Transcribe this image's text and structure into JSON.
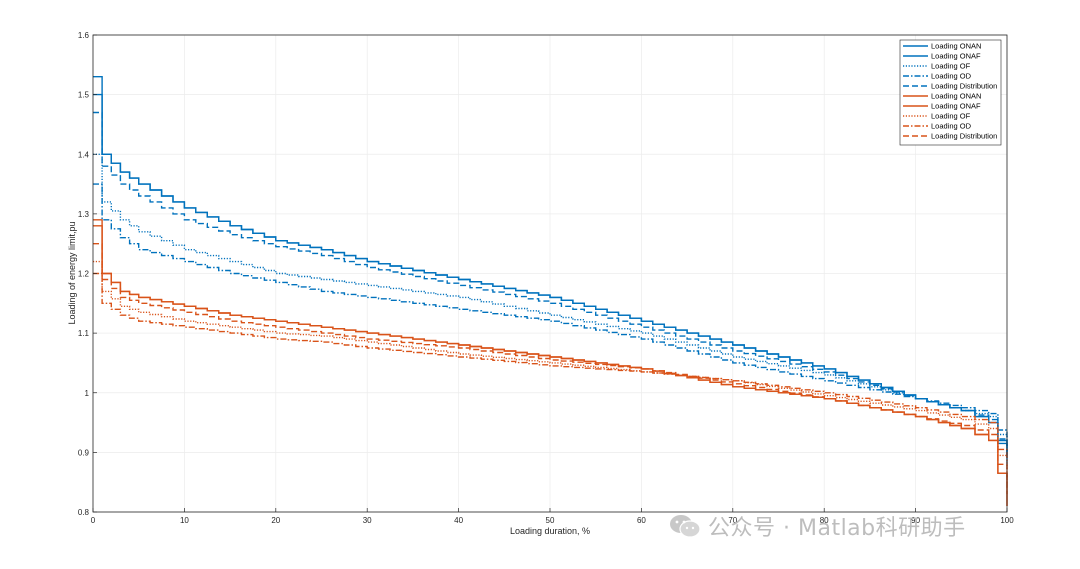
{
  "chart_data": {
    "type": "line",
    "title": "",
    "xlabel": "Loading duration, %",
    "ylabel": "Loading of energy limit,pu",
    "xlim": [
      0,
      100
    ],
    "ylim": [
      0.8,
      1.6
    ],
    "xticks": [
      "0",
      "10",
      "20",
      "30",
      "40",
      "50",
      "60",
      "70",
      "80",
      "90",
      "100"
    ],
    "yticks": [
      "0.8",
      "0.9",
      "1",
      "1.1",
      "1.2",
      "1.3",
      "1.4",
      "1.5",
      "1.6"
    ],
    "grid": true,
    "legend_position": "top-right",
    "series": [
      {
        "name": "Loading ONAN",
        "color": "#0072BD",
        "style": "solid",
        "x": [
          0,
          1,
          3,
          5,
          10,
          15,
          20,
          25,
          30,
          40,
          50,
          60,
          70,
          80,
          90,
          95,
          98,
          100
        ],
        "y": [
          1.53,
          1.4,
          1.37,
          1.35,
          1.31,
          1.28,
          1.255,
          1.24,
          1.22,
          1.19,
          1.16,
          1.12,
          1.08,
          1.04,
          0.99,
          0.97,
          0.95,
          0.89
        ]
      },
      {
        "name": "Loading ONAF",
        "color": "#0072BD",
        "style": "solid",
        "x": [
          0,
          1,
          3,
          5,
          10,
          15,
          20,
          25,
          30,
          40,
          50,
          60,
          70,
          80,
          90,
          95,
          98,
          100
        ],
        "y": [
          1.5,
          1.4,
          1.37,
          1.35,
          1.31,
          1.28,
          1.255,
          1.24,
          1.22,
          1.19,
          1.16,
          1.12,
          1.08,
          1.04,
          0.99,
          0.97,
          0.95,
          0.88
        ]
      },
      {
        "name": "Loading OF",
        "color": "#0072BD",
        "style": "dotted",
        "x": [
          0,
          1,
          3,
          5,
          10,
          15,
          20,
          25,
          30,
          40,
          50,
          60,
          70,
          80,
          90,
          95,
          98,
          100
        ],
        "y": [
          1.4,
          1.32,
          1.29,
          1.27,
          1.24,
          1.22,
          1.2,
          1.19,
          1.18,
          1.16,
          1.13,
          1.1,
          1.06,
          1.03,
          0.99,
          0.97,
          0.96,
          0.9
        ]
      },
      {
        "name": "Loading OD",
        "color": "#0072BD",
        "style": "dashdot",
        "x": [
          0,
          1,
          3,
          5,
          10,
          15,
          20,
          25,
          30,
          40,
          50,
          60,
          70,
          80,
          90,
          95,
          98,
          100
        ],
        "y": [
          1.35,
          1.29,
          1.26,
          1.24,
          1.22,
          1.2,
          1.185,
          1.17,
          1.16,
          1.14,
          1.12,
          1.09,
          1.05,
          1.02,
          0.99,
          0.975,
          0.965,
          0.91
        ]
      },
      {
        "name": "Loading Distribution",
        "color": "#0072BD",
        "style": "dashed",
        "x": [
          0,
          1,
          3,
          5,
          10,
          15,
          20,
          25,
          30,
          40,
          50,
          60,
          70,
          80,
          90,
          95,
          98,
          100
        ],
        "y": [
          1.47,
          1.38,
          1.35,
          1.33,
          1.29,
          1.265,
          1.245,
          1.23,
          1.21,
          1.18,
          1.15,
          1.11,
          1.07,
          1.035,
          0.99,
          0.97,
          0.955,
          0.89
        ]
      },
      {
        "name": "Loading ONAN",
        "color": "#D95319",
        "style": "solid",
        "x": [
          0,
          1,
          3,
          5,
          10,
          15,
          20,
          25,
          30,
          40,
          50,
          60,
          70,
          80,
          90,
          95,
          98,
          100
        ],
        "y": [
          1.29,
          1.2,
          1.17,
          1.16,
          1.145,
          1.13,
          1.12,
          1.11,
          1.1,
          1.08,
          1.06,
          1.04,
          1.01,
          0.99,
          0.96,
          0.94,
          0.92,
          0.81
        ]
      },
      {
        "name": "Loading ONAF",
        "color": "#D95319",
        "style": "solid",
        "x": [
          0,
          1,
          3,
          5,
          10,
          15,
          20,
          25,
          30,
          40,
          50,
          60,
          70,
          80,
          90,
          95,
          98,
          100
        ],
        "y": [
          1.28,
          1.2,
          1.17,
          1.16,
          1.145,
          1.13,
          1.12,
          1.11,
          1.1,
          1.08,
          1.06,
          1.04,
          1.01,
          0.99,
          0.96,
          0.94,
          0.92,
          0.81
        ]
      },
      {
        "name": "Loading OF",
        "color": "#D95319",
        "style": "dotted",
        "x": [
          0,
          1,
          3,
          5,
          10,
          15,
          20,
          25,
          30,
          40,
          50,
          60,
          70,
          80,
          90,
          95,
          98,
          100
        ],
        "y": [
          1.22,
          1.17,
          1.145,
          1.135,
          1.12,
          1.11,
          1.1,
          1.095,
          1.085,
          1.065,
          1.05,
          1.035,
          1.02,
          0.995,
          0.97,
          0.955,
          0.94,
          0.85
        ]
      },
      {
        "name": "Loading OD",
        "color": "#D95319",
        "style": "dashdot",
        "x": [
          0,
          1,
          3,
          5,
          10,
          15,
          20,
          25,
          30,
          40,
          50,
          60,
          70,
          80,
          90,
          95,
          98,
          100
        ],
        "y": [
          1.2,
          1.15,
          1.13,
          1.12,
          1.11,
          1.1,
          1.09,
          1.085,
          1.075,
          1.06,
          1.045,
          1.035,
          1.02,
          1.0,
          0.975,
          0.96,
          0.95,
          0.86
        ]
      },
      {
        "name": "Loading Distribution",
        "color": "#D95319",
        "style": "dashed",
        "x": [
          0,
          1,
          3,
          5,
          10,
          15,
          20,
          25,
          30,
          40,
          50,
          60,
          70,
          80,
          90,
          95,
          98,
          100
        ],
        "y": [
          1.25,
          1.19,
          1.16,
          1.15,
          1.135,
          1.12,
          1.11,
          1.1,
          1.09,
          1.075,
          1.055,
          1.04,
          1.015,
          0.99,
          0.96,
          0.945,
          0.93,
          0.83
        ]
      }
    ]
  },
  "watermark": {
    "text": "公众号 · Matlab科研助手"
  }
}
